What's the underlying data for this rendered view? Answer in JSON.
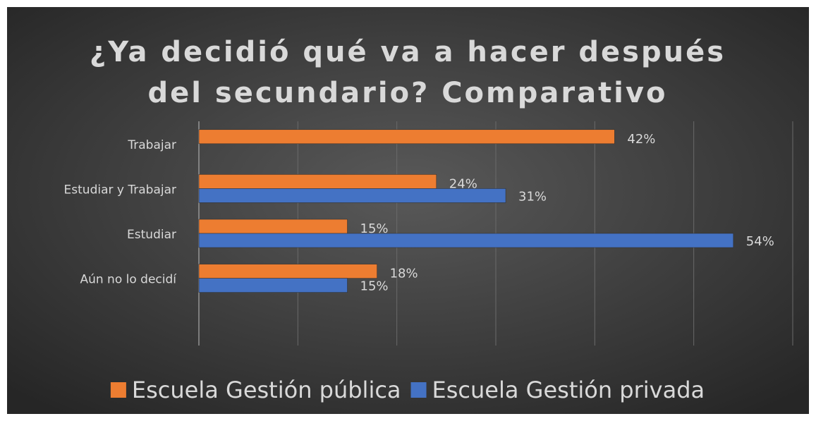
{
  "chart_data": {
    "type": "bar",
    "orientation": "horizontal",
    "title": [
      "¿Ya decidió qué va a hacer después",
      "del secundario? Comparativo"
    ],
    "categories": [
      "Trabajar",
      "Estudiar y Trabajar",
      "Estudiar",
      "Aún no lo decidí",
      null
    ],
    "series": [
      {
        "name": "Escuela Gestión pública",
        "color": "#ed7d31",
        "values": [
          42,
          24,
          15,
          18,
          null
        ],
        "value_labels": [
          "42%",
          "24%",
          "15%",
          "18%",
          null
        ]
      },
      {
        "name": "Escuela Gestión privada",
        "color": "#4472c4",
        "values": [
          null,
          31,
          54,
          15,
          null
        ],
        "value_labels": [
          null,
          "31%",
          "54%",
          "15%",
          null
        ]
      }
    ],
    "xlim": [
      0,
      60
    ],
    "xticks": [
      0,
      10,
      20,
      30,
      40,
      50,
      60
    ],
    "grid": true,
    "legend": "bottom"
  }
}
